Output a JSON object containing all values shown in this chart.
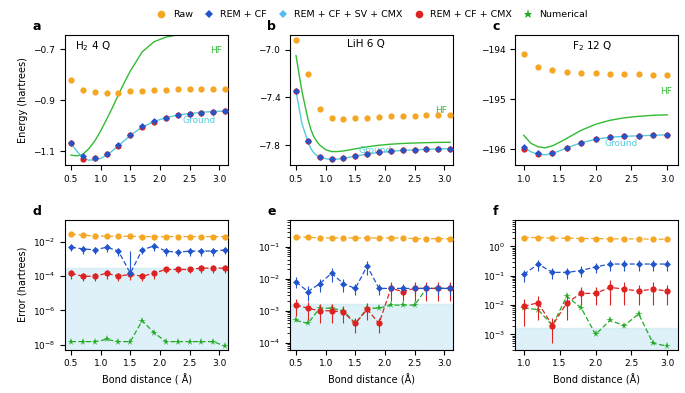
{
  "colors": {
    "raw": "#F5A623",
    "rem_cf": "#2255CC",
    "rem_cf_sv_cmx": "#55BBEE",
    "rem_cf_cmx": "#DD2222",
    "numerical": "#22AA22",
    "hf_green": "#33BB33",
    "ground_cyan": "#55CCDD",
    "shading": "#C8E8F5"
  },
  "panel_a": {
    "title": "H$_2$ 4 Q",
    "xlim": [
      0.4,
      3.15
    ],
    "ylim": [
      -1.155,
      -0.645
    ],
    "yticks": [
      -1.1,
      -0.9,
      -0.7
    ],
    "xticks": [
      0.5,
      1.0,
      1.5,
      2.0,
      2.5,
      3.0
    ],
    "hf_x": [
      0.5,
      0.6,
      0.7,
      0.8,
      0.9,
      1.0,
      1.1,
      1.2,
      1.3,
      1.4,
      1.5,
      1.7,
      1.9,
      2.1,
      2.3,
      2.5,
      2.7,
      2.9,
      3.1
    ],
    "hf_y": [
      -1.115,
      -1.118,
      -1.112,
      -1.09,
      -1.06,
      -1.02,
      -0.975,
      -0.928,
      -0.878,
      -0.83,
      -0.785,
      -0.71,
      -0.67,
      -0.652,
      -0.643,
      -0.638,
      -0.635,
      -0.633,
      -0.632
    ],
    "ground_x": [
      0.5,
      0.6,
      0.7,
      0.8,
      0.9,
      1.0,
      1.1,
      1.2,
      1.3,
      1.5,
      1.7,
      1.9,
      2.1,
      2.3,
      2.5,
      2.7,
      2.9,
      3.1
    ],
    "ground_y": [
      -1.07,
      -1.1,
      -1.125,
      -1.135,
      -1.133,
      -1.128,
      -1.115,
      -1.098,
      -1.078,
      -1.038,
      -1.005,
      -0.983,
      -0.968,
      -0.958,
      -0.952,
      -0.947,
      -0.944,
      -0.942
    ],
    "raw_x": [
      0.5,
      0.7,
      0.9,
      1.1,
      1.3,
      1.5,
      1.7,
      1.9,
      2.1,
      2.3,
      2.5,
      2.7,
      2.9,
      3.1
    ],
    "raw_y": [
      -0.82,
      -0.858,
      -0.868,
      -0.872,
      -0.87,
      -0.865,
      -0.862,
      -0.86,
      -0.858,
      -0.857,
      -0.856,
      -0.855,
      -0.854,
      -0.854
    ],
    "blue_x": [
      0.5,
      0.7,
      0.9,
      1.1,
      1.3,
      1.5,
      1.7,
      1.9,
      2.1,
      2.3,
      2.5,
      2.7,
      2.9,
      3.1
    ],
    "blue_y": [
      -1.068,
      -1.118,
      -1.125,
      -1.112,
      -1.075,
      -1.035,
      -1.002,
      -0.982,
      -0.968,
      -0.958,
      -0.952,
      -0.948,
      -0.945,
      -0.943
    ],
    "red_x": [
      0.5,
      0.7,
      0.9,
      1.1,
      1.3,
      1.5,
      1.7,
      1.9,
      2.1,
      2.3,
      2.5,
      2.7,
      2.9,
      3.1
    ],
    "red_y": [
      -1.068,
      -1.13,
      -1.128,
      -1.112,
      -1.078,
      -1.038,
      -1.005,
      -0.984,
      -0.969,
      -0.959,
      -0.952,
      -0.948,
      -0.945,
      -0.942
    ]
  },
  "panel_b": {
    "title": "LiH 6 Q",
    "xlim": [
      0.4,
      3.15
    ],
    "ylim": [
      -7.97,
      -6.88
    ],
    "yticks": [
      -7.8,
      -7.4,
      -7.0
    ],
    "xticks": [
      0.5,
      1.0,
      1.5,
      2.0,
      2.5,
      3.0
    ],
    "hf_x": [
      0.5,
      0.6,
      0.7,
      0.75,
      0.8,
      0.85,
      0.9,
      1.0,
      1.1,
      1.2,
      1.3,
      1.5,
      1.7,
      1.9,
      2.1,
      2.3,
      2.5,
      2.7,
      2.9,
      3.1
    ],
    "hf_y": [
      -7.05,
      -7.35,
      -7.58,
      -7.67,
      -7.73,
      -7.77,
      -7.8,
      -7.84,
      -7.855,
      -7.855,
      -7.85,
      -7.832,
      -7.815,
      -7.802,
      -7.793,
      -7.787,
      -7.783,
      -7.78,
      -7.778,
      -7.777
    ],
    "ground_x": [
      0.5,
      0.6,
      0.7,
      0.75,
      0.8,
      0.85,
      0.9,
      1.0,
      1.1,
      1.2,
      1.3,
      1.5,
      1.7,
      1.9,
      2.1,
      2.3,
      2.5,
      2.7,
      2.9,
      3.1
    ],
    "ground_y": [
      -7.35,
      -7.62,
      -7.77,
      -7.83,
      -7.865,
      -7.888,
      -7.9,
      -7.915,
      -7.92,
      -7.918,
      -7.912,
      -7.893,
      -7.876,
      -7.862,
      -7.852,
      -7.845,
      -7.84,
      -7.836,
      -7.833,
      -7.831
    ],
    "raw_x": [
      0.5,
      0.7,
      0.9,
      1.1,
      1.3,
      1.5,
      1.7,
      1.9,
      2.1,
      2.3,
      2.5,
      2.7,
      2.9,
      3.1
    ],
    "raw_y": [
      -6.92,
      -7.2,
      -7.5,
      -7.57,
      -7.58,
      -7.575,
      -7.57,
      -7.565,
      -7.56,
      -7.555,
      -7.553,
      -7.551,
      -7.55,
      -7.549
    ],
    "blue_x": [
      0.5,
      0.7,
      0.9,
      1.1,
      1.3,
      1.5,
      1.7,
      1.9,
      2.1,
      2.3,
      2.5,
      2.7,
      2.9,
      3.1
    ],
    "blue_y": [
      -7.35,
      -7.77,
      -7.9,
      -7.918,
      -7.912,
      -7.893,
      -7.876,
      -7.862,
      -7.852,
      -7.845,
      -7.84,
      -7.836,
      -7.833,
      -7.831
    ],
    "red_x": [
      0.5,
      0.7,
      0.9,
      1.1,
      1.3,
      1.5,
      1.7,
      1.9,
      2.1,
      2.3,
      2.5,
      2.7,
      2.9,
      3.1
    ],
    "red_y": [
      -7.35,
      -7.77,
      -7.9,
      -7.918,
      -7.912,
      -7.893,
      -7.876,
      -7.862,
      -7.852,
      -7.845,
      -7.84,
      -7.836,
      -7.833,
      -7.831
    ]
  },
  "panel_c": {
    "title": "F$_2$ 12 Q",
    "xlim": [
      0.88,
      3.15
    ],
    "ylim": [
      -196.32,
      -193.72
    ],
    "yticks": [
      -196,
      -195,
      -194
    ],
    "xticks": [
      1.0,
      1.5,
      2.0,
      2.5,
      3.0
    ],
    "hf_x": [
      1.0,
      1.1,
      1.2,
      1.3,
      1.4,
      1.5,
      1.6,
      1.8,
      2.0,
      2.2,
      2.4,
      2.6,
      2.8,
      3.0
    ],
    "hf_y": [
      -195.72,
      -195.88,
      -195.95,
      -195.97,
      -195.93,
      -195.86,
      -195.78,
      -195.62,
      -195.5,
      -195.42,
      -195.37,
      -195.34,
      -195.32,
      -195.31
    ],
    "ground_x": [
      1.0,
      1.1,
      1.2,
      1.3,
      1.4,
      1.5,
      1.6,
      1.8,
      2.0,
      2.2,
      2.4,
      2.6,
      2.8,
      3.0
    ],
    "ground_y": [
      -195.96,
      -196.05,
      -196.1,
      -196.11,
      -196.08,
      -196.03,
      -195.97,
      -195.87,
      -195.8,
      -195.76,
      -195.74,
      -195.73,
      -195.72,
      -195.71
    ],
    "raw_x": [
      1.0,
      1.2,
      1.4,
      1.6,
      1.8,
      2.0,
      2.2,
      2.4,
      2.6,
      2.8,
      3.0
    ],
    "raw_y": [
      -194.1,
      -194.35,
      -194.42,
      -194.45,
      -194.47,
      -194.48,
      -194.49,
      -194.5,
      -194.5,
      -194.51,
      -194.51
    ],
    "blue_x": [
      1.0,
      1.2,
      1.4,
      1.6,
      1.8,
      2.0,
      2.2,
      2.4,
      2.6,
      2.8,
      3.0
    ],
    "blue_y": [
      -195.96,
      -196.08,
      -196.07,
      -195.97,
      -195.87,
      -195.8,
      -195.76,
      -195.74,
      -195.73,
      -195.72,
      -195.71
    ],
    "red_x": [
      1.0,
      1.2,
      1.4,
      1.6,
      1.8,
      2.0,
      2.2,
      2.4,
      2.6,
      2.8,
      3.0
    ],
    "red_y": [
      -195.99,
      -196.1,
      -196.08,
      -195.98,
      -195.87,
      -195.8,
      -195.76,
      -195.74,
      -195.73,
      -195.72,
      -195.71
    ]
  },
  "panel_d": {
    "xlim": [
      0.4,
      3.15
    ],
    "ylim": [
      5e-09,
      0.2
    ],
    "shading_top": 0.0003,
    "raw_x": [
      0.5,
      0.7,
      0.9,
      1.1,
      1.3,
      1.5,
      1.7,
      1.9,
      2.1,
      2.3,
      2.5,
      2.7,
      2.9,
      3.1
    ],
    "raw_y": [
      0.03,
      0.025,
      0.023,
      0.022,
      0.022,
      0.022,
      0.021,
      0.021,
      0.021,
      0.021,
      0.021,
      0.021,
      0.021,
      0.021
    ],
    "blue_x": [
      0.5,
      0.7,
      0.9,
      1.1,
      1.3,
      1.5,
      1.7,
      1.9,
      2.1,
      2.3,
      2.5,
      2.7,
      2.9,
      3.1
    ],
    "blue_y": [
      0.005,
      0.004,
      0.0035,
      0.005,
      0.003,
      0.00015,
      0.0035,
      0.006,
      0.003,
      0.0025,
      0.003,
      0.003,
      0.003,
      0.0035
    ],
    "blue_yerr_lo": [
      0.002,
      0.002,
      0.0015,
      0.0025,
      0.0015,
      0,
      0.0015,
      0.003,
      0.0015,
      0.001,
      0.0015,
      0.0015,
      0.0015,
      0.0015
    ],
    "blue_yerr_hi": [
      0.002,
      0.002,
      0.0015,
      0.0025,
      0.0015,
      0.003,
      0.0015,
      0.003,
      0.0015,
      0.001,
      0.0015,
      0.0015,
      0.0015,
      0.0015
    ],
    "red_x": [
      0.5,
      0.7,
      0.9,
      1.1,
      1.3,
      1.5,
      1.7,
      1.9,
      2.1,
      2.3,
      2.5,
      2.7,
      2.9,
      3.1
    ],
    "red_y": [
      0.00015,
      0.0001,
      0.0001,
      0.00015,
      0.0001,
      0.00013,
      0.0001,
      0.00015,
      0.00025,
      0.00025,
      0.00025,
      0.0003,
      0.0003,
      0.0003
    ],
    "red_yerr_lo": [
      8e-05,
      5e-05,
      5e-05,
      8e-05,
      5e-05,
      7e-05,
      5e-05,
      8e-05,
      0.0001,
      0.0001,
      0.0001,
      0.00015,
      0.00015,
      0.00015
    ],
    "red_yerr_hi": [
      8e-05,
      5e-05,
      5e-05,
      8e-05,
      5e-05,
      7e-05,
      5e-05,
      8e-05,
      0.0001,
      0.0001,
      0.0001,
      0.00015,
      0.00015,
      0.00015
    ],
    "green_x": [
      0.5,
      0.7,
      0.9,
      1.1,
      1.3,
      1.5,
      1.7,
      1.9,
      2.1,
      2.3,
      2.5,
      2.7,
      2.9,
      3.1
    ],
    "green_y": [
      1.5e-08,
      1.5e-08,
      1.5e-08,
      2e-08,
      1.5e-08,
      1.5e-08,
      2.5e-07,
      5e-08,
      1.5e-08,
      1.5e-08,
      1.5e-08,
      1.5e-08,
      1.5e-08,
      8e-09
    ],
    "yticks": [
      1e-08,
      1e-06,
      0.0001,
      0.01
    ],
    "xticks": [
      0.5,
      1.0,
      1.5,
      2.0,
      2.5,
      3.0
    ]
  },
  "panel_e": {
    "xlim": [
      0.4,
      3.15
    ],
    "ylim": [
      6e-05,
      0.7
    ],
    "shading_top": 0.0016,
    "raw_x": [
      0.5,
      0.7,
      0.9,
      1.1,
      1.3,
      1.5,
      1.7,
      1.9,
      2.1,
      2.3,
      2.5,
      2.7,
      2.9,
      3.1
    ],
    "raw_y": [
      0.2,
      0.2,
      0.19,
      0.19,
      0.19,
      0.19,
      0.19,
      0.19,
      0.19,
      0.19,
      0.18,
      0.18,
      0.18,
      0.18
    ],
    "blue_x": [
      0.5,
      0.7,
      0.9,
      1.1,
      1.3,
      1.5,
      1.7,
      1.9,
      2.1,
      2.3,
      2.5,
      2.7,
      2.9,
      3.1
    ],
    "blue_y": [
      0.008,
      0.004,
      0.007,
      0.015,
      0.007,
      0.005,
      0.025,
      0.005,
      0.005,
      0.005,
      0.005,
      0.005,
      0.005,
      0.005
    ],
    "blue_yerr_lo": [
      0.003,
      0.002,
      0.003,
      0.007,
      0.003,
      0.002,
      0.012,
      0.002,
      0.002,
      0.002,
      0.002,
      0.002,
      0.002,
      0.002
    ],
    "blue_yerr_hi": [
      0.003,
      0.002,
      0.003,
      0.007,
      0.003,
      0.002,
      0.012,
      0.002,
      0.002,
      0.002,
      0.002,
      0.002,
      0.002,
      0.002
    ],
    "red_x": [
      0.5,
      0.7,
      0.9,
      1.1,
      1.3,
      1.5,
      1.7,
      1.9,
      2.1,
      2.3,
      2.5,
      2.7,
      2.9,
      3.1
    ],
    "red_y": [
      0.0015,
      0.0012,
      0.001,
      0.001,
      0.0009,
      0.0004,
      0.0011,
      0.0004,
      0.005,
      0.004,
      0.005,
      0.005,
      0.005,
      0.005
    ],
    "red_yerr_lo": [
      0.0008,
      0.0007,
      0.0006,
      0.0006,
      0.0005,
      0.0002,
      0.0006,
      0.0002,
      0.003,
      0.002,
      0.003,
      0.003,
      0.003,
      0.003
    ],
    "red_yerr_hi": [
      0.0008,
      0.0007,
      0.0006,
      0.0006,
      0.0005,
      0.0002,
      0.0006,
      0.0002,
      0.003,
      0.002,
      0.003,
      0.003,
      0.003,
      0.003
    ],
    "green_x": [
      0.5,
      0.7,
      0.9,
      1.1,
      1.3,
      1.5,
      1.7,
      1.9,
      2.1,
      2.3,
      2.5,
      2.7,
      2.9,
      3.1
    ],
    "green_y": [
      0.0005,
      0.0004,
      0.0012,
      0.0012,
      0.001,
      0.0004,
      0.0012,
      0.0012,
      0.0015,
      0.0015,
      0.0015,
      0.005,
      0.005,
      0.005
    ],
    "yticks": [
      0.0001,
      0.001,
      0.01,
      0.1
    ],
    "xticks": [
      0.5,
      1.0,
      1.5,
      2.0,
      2.5,
      3.0
    ]
  },
  "panel_f": {
    "xlim": [
      0.88,
      3.15
    ],
    "ylim": [
      0.0003,
      8.0
    ],
    "shading_top": 0.0016,
    "raw_x": [
      1.0,
      1.2,
      1.4,
      1.6,
      1.8,
      2.0,
      2.2,
      2.4,
      2.6,
      2.8,
      3.0
    ],
    "raw_y": [
      2.0,
      2.0,
      1.9,
      1.9,
      1.85,
      1.85,
      1.8,
      1.8,
      1.8,
      1.75,
      1.75
    ],
    "blue_x": [
      1.0,
      1.2,
      1.4,
      1.6,
      1.8,
      2.0,
      2.2,
      2.4,
      2.6,
      2.8,
      3.0
    ],
    "blue_y": [
      0.11,
      0.25,
      0.13,
      0.13,
      0.15,
      0.2,
      0.25,
      0.25,
      0.25,
      0.25,
      0.25
    ],
    "blue_yerr_lo": [
      0.05,
      0.1,
      0.05,
      0.05,
      0.06,
      0.08,
      0.1,
      0.1,
      0.1,
      0.1,
      0.1
    ],
    "blue_yerr_hi": [
      0.05,
      0.1,
      0.05,
      0.05,
      0.06,
      0.08,
      0.1,
      0.1,
      0.1,
      0.1,
      0.1
    ],
    "red_x": [
      1.0,
      1.2,
      1.4,
      1.6,
      1.8,
      2.0,
      2.2,
      2.4,
      2.6,
      2.8,
      3.0
    ],
    "red_y": [
      0.009,
      0.012,
      0.002,
      0.012,
      0.025,
      0.025,
      0.04,
      0.035,
      0.03,
      0.035,
      0.03
    ],
    "red_yerr_lo": [
      0.007,
      0.009,
      0.0015,
      0.009,
      0.015,
      0.015,
      0.03,
      0.025,
      0.02,
      0.025,
      0.02
    ],
    "red_yerr_hi": [
      0.007,
      0.009,
      0.0015,
      0.009,
      0.015,
      0.015,
      0.03,
      0.025,
      0.02,
      0.025,
      0.02
    ],
    "green_x": [
      1.0,
      1.2,
      1.4,
      1.6,
      1.8,
      2.0,
      2.2,
      2.4,
      2.6,
      2.8,
      3.0
    ],
    "green_y": [
      0.008,
      0.007,
      0.002,
      0.02,
      0.008,
      0.001,
      0.003,
      0.002,
      0.005,
      0.0005,
      0.0004
    ],
    "yticks": [
      0.001,
      0.01,
      0.1,
      1.0
    ],
    "xticks": [
      1.0,
      1.5,
      2.0,
      2.5,
      3.0
    ]
  }
}
